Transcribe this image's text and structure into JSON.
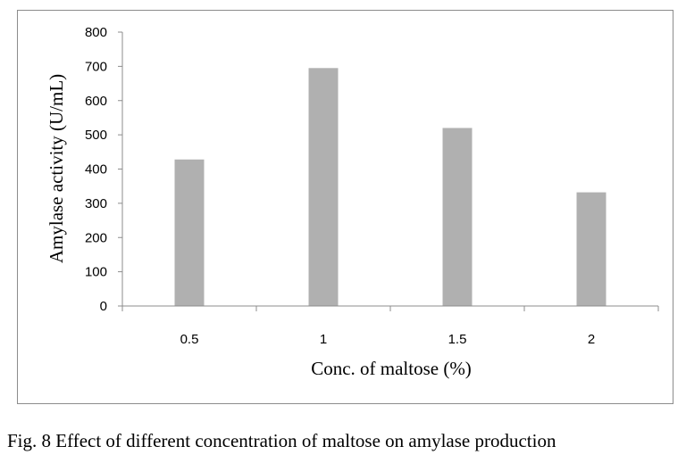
{
  "chart_data": {
    "type": "bar",
    "categories": [
      "0.5",
      "1",
      "1.5",
      "2"
    ],
    "values": [
      428,
      695,
      520,
      332
    ],
    "xlabel": "Conc. of maltose (%)",
    "ylabel": "Amylase activity (U/mL)",
    "ylim": [
      0,
      800
    ],
    "yticks": [
      0,
      100,
      200,
      300,
      400,
      500,
      600,
      700,
      800
    ],
    "grid": false,
    "legend": "none",
    "bar_color": "#b0b0b0",
    "axis_color": "#8c8c8c"
  },
  "caption": "Fig. 8 Effect of different concentration of maltose on amylase production"
}
